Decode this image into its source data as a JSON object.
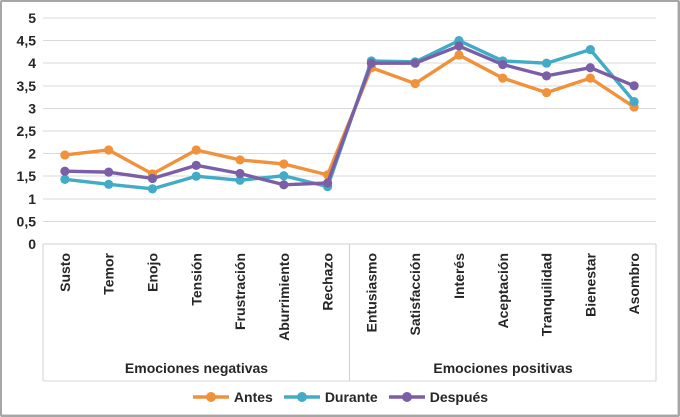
{
  "chart_data": {
    "type": "line",
    "title": "",
    "categories": [
      "Susto",
      "Temor",
      "Enojo",
      "Tensión",
      "Frustración",
      "Aburrimiento",
      "Rechazo",
      "Entusiasmo",
      "Satisfacción",
      "Interés",
      "Aceptación",
      "Tranquilidad",
      "Bienestar",
      "Asombro"
    ],
    "category_groups": [
      {
        "label": "Emociones negativas",
        "from": 0,
        "to": 6
      },
      {
        "label": "Emociones positivas",
        "from": 7,
        "to": 13
      }
    ],
    "series": [
      {
        "name": "Antes",
        "color": "#F0913C",
        "values": [
          1.97,
          2.08,
          1.55,
          2.08,
          1.86,
          1.77,
          1.53,
          3.9,
          3.55,
          4.18,
          3.67,
          3.35,
          3.67,
          3.03
        ]
      },
      {
        "name": "Durante",
        "color": "#42ABC5",
        "values": [
          1.43,
          1.32,
          1.22,
          1.5,
          1.41,
          1.51,
          1.27,
          4.05,
          4.03,
          4.5,
          4.05,
          4.0,
          4.3,
          3.15
        ]
      },
      {
        "name": "Después",
        "color": "#7A5FA6",
        "values": [
          1.61,
          1.59,
          1.45,
          1.74,
          1.56,
          1.31,
          1.35,
          4.0,
          4.0,
          4.38,
          3.97,
          3.72,
          3.9,
          3.5
        ]
      }
    ],
    "y_axis": {
      "min": 0,
      "max": 5,
      "step": 0.5,
      "tick_labels": [
        "0",
        "0,5",
        "1",
        "1,5",
        "2",
        "2,5",
        "3",
        "3,5",
        "4",
        "4,5",
        "5"
      ]
    },
    "grid": true,
    "legend_position": "bottom",
    "colors": {
      "gridline": "#D9D9D9",
      "axis": "#D0D0D0",
      "text": "#262626",
      "frame_border": "#A6A6A6"
    }
  }
}
